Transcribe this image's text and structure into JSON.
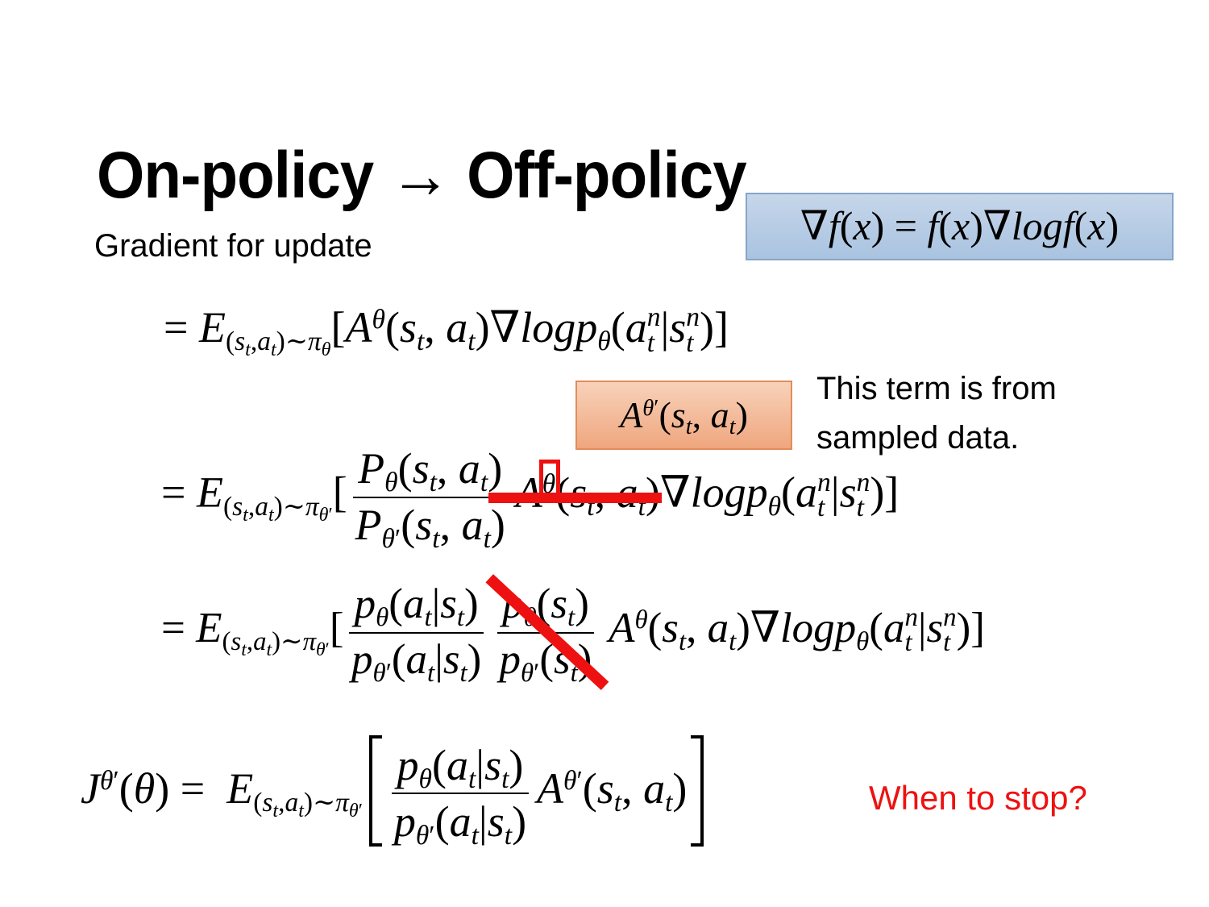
{
  "colors": {
    "bg": "#ffffff",
    "text": "#000000",
    "red": "#ee1111",
    "blue-top": "#c6d6ea",
    "blue-bottom": "#a9c3e0",
    "blue-border": "#87a5c9",
    "orange-top": "#f8d2ba",
    "orange-bottom": "#efa67e",
    "orange-border": "#e28c5c"
  },
  "slide": {
    "title": "On-policy → Off-policy",
    "subtitle": "Gradient for update",
    "note_line1": "This term is from",
    "note_line2": "sampled data.",
    "question": "When to stop?"
  },
  "math": {
    "identity": [
      {
        "r": "∇"
      },
      "f",
      {
        "r": "("
      },
      "x",
      {
        "r": ") = "
      },
      "f",
      {
        "r": "("
      },
      "x",
      {
        "r": ")"
      },
      {
        "r": "∇"
      },
      "logf",
      {
        "r": "("
      },
      "x",
      {
        "r": ")"
      }
    ],
    "advantage": [
      "A",
      {
        "up": [
          "θ",
          {
            "r": "′"
          }
        ]
      },
      {
        "r": "("
      },
      "s",
      {
        "dn": [
          "t"
        ]
      },
      {
        "r": ", "
      },
      "a",
      {
        "dn": [
          "t"
        ]
      },
      {
        "r": ")"
      }
    ],
    "eq1": [
      {
        "r": "= "
      },
      "E",
      {
        "dn": [
          {
            "r": "("
          },
          "s",
          {
            "dn": [
              "t"
            ]
          },
          {
            "r": ","
          },
          "a",
          {
            "dn": [
              "t"
            ]
          },
          {
            "r": ")"
          },
          {
            "r": "∼"
          },
          "π",
          {
            "dn": [
              "θ"
            ]
          }
        ]
      },
      {
        "r": "["
      },
      "A",
      {
        "up": [
          "θ"
        ]
      },
      {
        "r": "("
      },
      "s",
      {
        "dn": [
          "t"
        ]
      },
      {
        "r": ", "
      },
      "a",
      {
        "dn": [
          "t"
        ]
      },
      {
        "r": ")"
      },
      {
        "r": "∇"
      },
      "logp",
      {
        "dn": [
          "θ"
        ]
      },
      {
        "r": "("
      },
      "a",
      {
        "ud": [
          [
            "n"
          ],
          [
            "t"
          ]
        ]
      },
      {
        "r": "|"
      },
      "s",
      {
        "ud": [
          [
            "n"
          ],
          [
            "t"
          ]
        ]
      },
      {
        "r": ")]"
      }
    ],
    "eq2": [
      {
        "r": "= "
      },
      "E",
      {
        "dn": [
          {
            "r": "("
          },
          "s",
          {
            "dn": [
              "t"
            ]
          },
          {
            "r": ","
          },
          "a",
          {
            "dn": [
              "t"
            ]
          },
          {
            "r": ")"
          },
          {
            "r": "∼"
          },
          "π",
          {
            "dn": [
              "θ",
              {
                "r": "′"
              }
            ]
          }
        ]
      },
      {
        "r": "["
      },
      {
        "frac": [
          [
            "P",
            {
              "dn": [
                "θ"
              ]
            },
            {
              "r": "("
            },
            "s",
            {
              "dn": [
                "t"
              ]
            },
            {
              "r": ", "
            },
            "a",
            {
              "dn": [
                "t"
              ]
            },
            {
              "r": ")"
            }
          ],
          [
            "P",
            {
              "dn": [
                "θ",
                {
                  "r": "′"
                }
              ]
            },
            {
              "r": "("
            },
            "s",
            {
              "dn": [
                "t"
              ]
            },
            {
              "r": ", "
            },
            "a",
            {
              "dn": [
                "t"
              ]
            },
            {
              "r": ")"
            }
          ]
        ]
      },
      {
        "g": [
          "A",
          {
            "up": [
              {
                "g": [
                  "θ"
                ],
                "c": "red-rect"
              }
            ]
          },
          {
            "r": "("
          },
          "s",
          {
            "dn": [
              "t"
            ]
          },
          {
            "r": ", "
          },
          "a",
          {
            "dn": [
              "t"
            ]
          },
          {
            "r": ")"
          }
        ],
        "c": "red-strike"
      },
      {
        "r": "∇"
      },
      "logp",
      {
        "dn": [
          "θ"
        ]
      },
      {
        "r": "("
      },
      "a",
      {
        "ud": [
          [
            "n"
          ],
          [
            "t"
          ]
        ]
      },
      {
        "r": "|"
      },
      "s",
      {
        "ud": [
          [
            "n"
          ],
          [
            "t"
          ]
        ]
      },
      {
        "r": ")]"
      }
    ],
    "eq3": [
      {
        "r": "= "
      },
      "E",
      {
        "dn": [
          {
            "r": "("
          },
          "s",
          {
            "dn": [
              "t"
            ]
          },
          {
            "r": ","
          },
          "a",
          {
            "dn": [
              "t"
            ]
          },
          {
            "r": ")"
          },
          {
            "r": "∼"
          },
          "π",
          {
            "dn": [
              "θ",
              {
                "r": "′"
              }
            ]
          }
        ]
      },
      {
        "r": "["
      },
      {
        "frac": [
          [
            "p",
            {
              "dn": [
                "θ"
              ]
            },
            {
              "r": "("
            },
            "a",
            {
              "dn": [
                "t"
              ]
            },
            {
              "r": "|"
            },
            "s",
            {
              "dn": [
                "t"
              ]
            },
            {
              "r": ")"
            }
          ],
          [
            "p",
            {
              "dn": [
                "θ",
                {
                  "r": "′"
                }
              ]
            },
            {
              "r": "("
            },
            "a",
            {
              "dn": [
                "t"
              ]
            },
            {
              "r": "|"
            },
            "s",
            {
              "dn": [
                "t"
              ]
            },
            {
              "r": ")"
            }
          ]
        ]
      },
      {
        "g": [
          {
            "frac": [
              [
                "p",
                {
                  "dn": [
                    "θ"
                  ]
                },
                {
                  "r": "("
                },
                "s",
                {
                  "dn": [
                    "t"
                  ]
                },
                {
                  "r": ")"
                }
              ],
              [
                "p",
                {
                  "dn": [
                    "θ",
                    {
                      "r": "′"
                    }
                  ]
                },
                {
                  "r": "("
                },
                "s",
                {
                  "dn": [
                    "t"
                  ]
                },
                {
                  "r": ")"
                }
              ]
            ]
          }
        ],
        "c": "red-slash"
      },
      {
        "gap": 0.15
      },
      "A",
      {
        "up": [
          "θ"
        ]
      },
      {
        "r": "("
      },
      "s",
      {
        "dn": [
          "t"
        ]
      },
      {
        "r": ", "
      },
      "a",
      {
        "dn": [
          "t"
        ]
      },
      {
        "r": ")"
      },
      {
        "r": "∇"
      },
      "logp",
      {
        "dn": [
          "θ"
        ]
      },
      {
        "r": "("
      },
      "a",
      {
        "ud": [
          [
            "n"
          ],
          [
            "t"
          ]
        ]
      },
      {
        "r": "|"
      },
      "s",
      {
        "ud": [
          [
            "n"
          ],
          [
            "t"
          ]
        ]
      },
      {
        "r": ")]"
      }
    ],
    "eq4": [
      "J",
      {
        "up": [
          "θ",
          {
            "r": "′"
          }
        ]
      },
      {
        "r": "("
      },
      "θ",
      {
        "r": ") ="
      },
      {
        "gap": 0.5
      },
      "E",
      {
        "dn": [
          {
            "r": "("
          },
          "s",
          {
            "dn": [
              "t"
            ]
          },
          {
            "r": ","
          },
          "a",
          {
            "dn": [
              "t"
            ]
          },
          {
            "r": ")"
          },
          {
            "r": "∼"
          },
          "π",
          {
            "dn": [
              "θ",
              {
                "r": "′"
              }
            ]
          }
        ]
      },
      {
        "br": "l"
      },
      {
        "frac": [
          [
            "p",
            {
              "dn": [
                "θ"
              ]
            },
            {
              "r": "("
            },
            "a",
            {
              "dn": [
                "t"
              ]
            },
            {
              "r": "|"
            },
            "s",
            {
              "dn": [
                "t"
              ]
            },
            {
              "r": ")"
            }
          ],
          [
            "p",
            {
              "dn": [
                "θ",
                {
                  "r": "′"
                }
              ]
            },
            {
              "r": "("
            },
            "a",
            {
              "dn": [
                "t"
              ]
            },
            {
              "r": "|"
            },
            "s",
            {
              "dn": [
                "t"
              ]
            },
            {
              "r": ")"
            }
          ]
        ]
      },
      "A",
      {
        "up": [
          "θ",
          {
            "r": "′"
          }
        ]
      },
      {
        "r": "("
      },
      "s",
      {
        "dn": [
          "t"
        ]
      },
      {
        "r": ", "
      },
      "a",
      {
        "dn": [
          "t"
        ]
      },
      {
        "r": ")"
      },
      {
        "br": "r"
      }
    ]
  }
}
